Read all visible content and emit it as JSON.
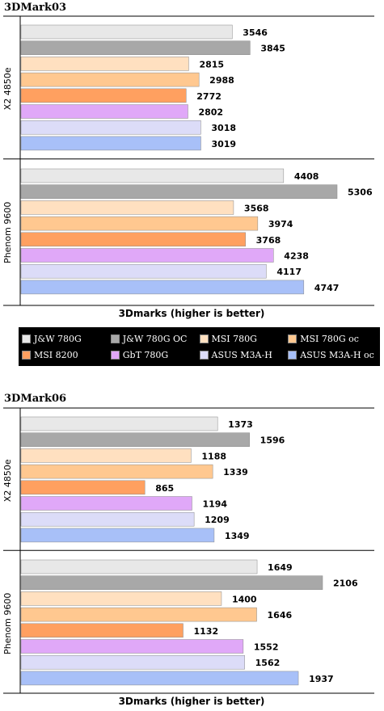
{
  "colors": [
    "#e8e8e8",
    "#a8a8a8",
    "#ffe0c0",
    "#ffc890",
    "#ffa060",
    "#e0a8f8",
    "#dcdcf8",
    "#a8c0f8"
  ],
  "chart_data": [
    {
      "type": "bar",
      "title": "3DMark03",
      "xlabel": "3Dmarks (higher is better)",
      "groups": [
        "X2 4850e",
        "Phenom 9600"
      ],
      "series": [
        {
          "name": "J&W 780G",
          "values": [
            3546,
            4408
          ]
        },
        {
          "name": "J&W 780G OC",
          "values": [
            3845,
            5306
          ]
        },
        {
          "name": "MSI 780G",
          "values": [
            2815,
            3568
          ]
        },
        {
          "name": "MSI 780G oc",
          "values": [
            2988,
            3974
          ]
        },
        {
          "name": "MSI 8200",
          "values": [
            2772,
            3768
          ]
        },
        {
          "name": "GbT 780G",
          "values": [
            2802,
            4238
          ]
        },
        {
          "name": "ASUS M3A-H",
          "values": [
            3018,
            4117
          ]
        },
        {
          "name": "ASUS M3A-H oc",
          "values": [
            3019,
            4747
          ]
        }
      ],
      "xlim": [
        0,
        6000
      ]
    },
    {
      "type": "bar",
      "title": "3DMark06",
      "xlabel": "3Dmarks (higher is better)",
      "groups": [
        "X2 4850e",
        "Phenom 9600"
      ],
      "series": [
        {
          "name": "J&W 780G",
          "values": [
            1373,
            1649
          ]
        },
        {
          "name": "J&W 780G OC",
          "values": [
            1596,
            2106
          ]
        },
        {
          "name": "MSI 780G",
          "values": [
            1188,
            1400
          ]
        },
        {
          "name": "MSI 780G oc",
          "values": [
            1339,
            1646
          ]
        },
        {
          "name": "MSI 8200",
          "values": [
            865,
            1132
          ]
        },
        {
          "name": "GbT 780G",
          "values": [
            1194,
            1552
          ]
        },
        {
          "name": "ASUS M3A-H",
          "values": [
            1209,
            1562
          ]
        },
        {
          "name": "ASUS M3A-H oc",
          "values": [
            1349,
            1937
          ]
        }
      ],
      "xlim": [
        0,
        2400
      ]
    }
  ],
  "legend": {
    "items": [
      "J&W 780G",
      "J&W 780G OC",
      "MSI 780G",
      "MSI 780G oc",
      "MSI 8200",
      "GbT 780G",
      "ASUS M3A-H",
      "ASUS M3A-H oc"
    ]
  }
}
